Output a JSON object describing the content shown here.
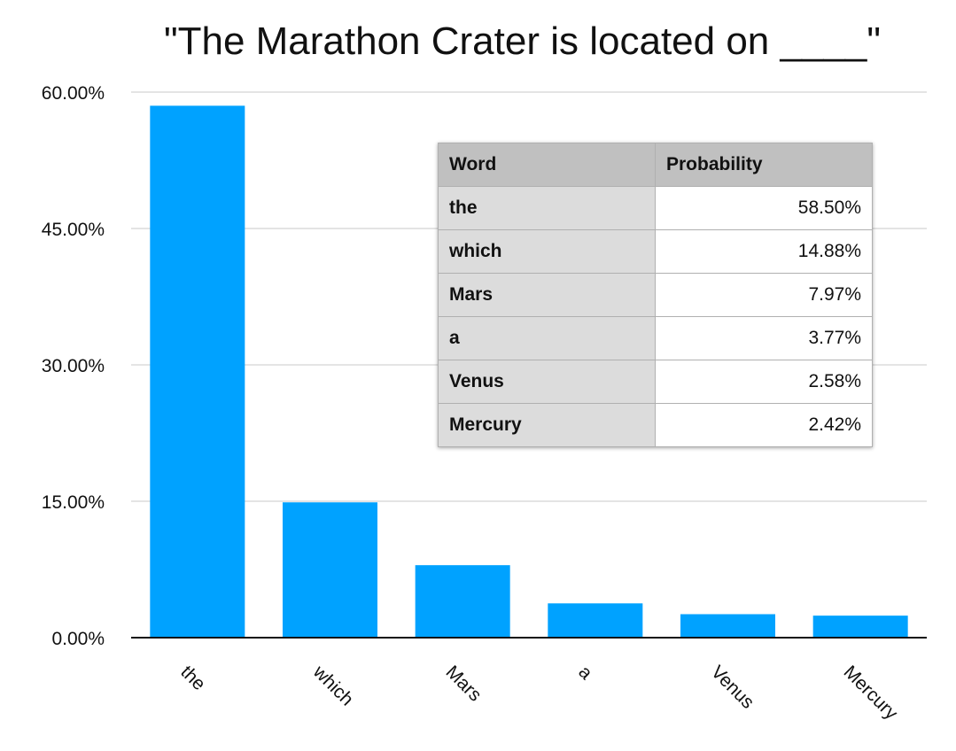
{
  "chart_data": {
    "type": "bar",
    "title": "\"The Marathon Crater is located on ____\"",
    "categories": [
      "the",
      "which",
      "Mars",
      "a",
      "Venus",
      "Mercury"
    ],
    "values": [
      58.5,
      14.88,
      7.97,
      3.77,
      2.58,
      2.42
    ],
    "ylim": [
      0,
      60
    ],
    "yticks": [
      0,
      15,
      30,
      45,
      60
    ],
    "ytick_labels": [
      "0.00%",
      "15.00%",
      "30.00%",
      "45.00%",
      "60.00%"
    ],
    "xlabel": "",
    "ylabel": "",
    "grid": true,
    "bar_color": "#00a2ff"
  },
  "table": {
    "headers": [
      "Word",
      "Probability"
    ],
    "rows": [
      {
        "word": "the",
        "probability": "58.50%"
      },
      {
        "word": "which",
        "probability": "14.88%"
      },
      {
        "word": "Mars",
        "probability": "7.97%"
      },
      {
        "word": "a",
        "probability": "3.77%"
      },
      {
        "word": "Venus",
        "probability": "2.58%"
      },
      {
        "word": "Mercury",
        "probability": "2.42%"
      }
    ]
  }
}
